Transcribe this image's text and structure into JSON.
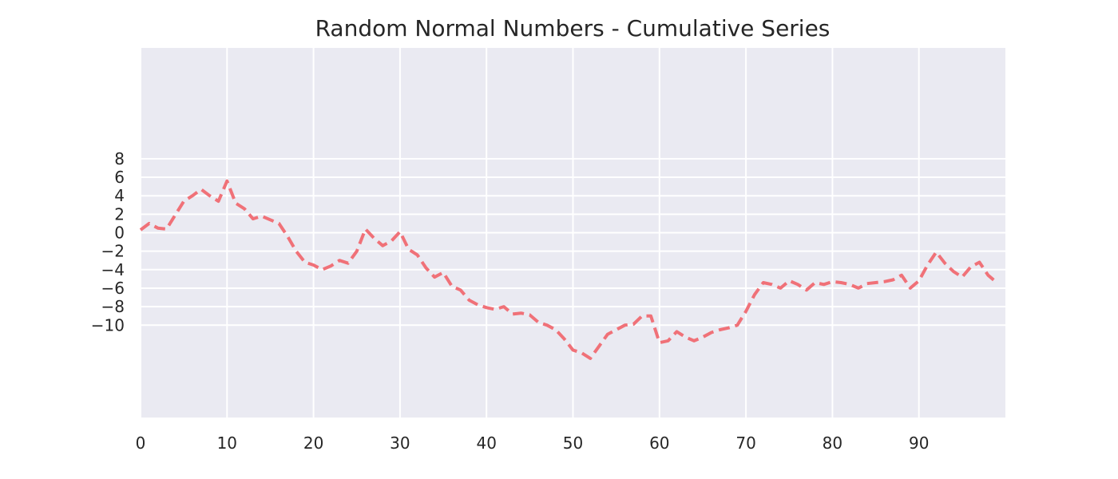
{
  "chart_data": {
    "type": "line",
    "title": "Random Normal Numbers - Cumulative Series",
    "xlabel": "",
    "ylabel": "",
    "xlim": [
      0,
      100
    ],
    "ylim": [
      -20,
      20
    ],
    "x_ticks": [
      0,
      10,
      20,
      30,
      40,
      50,
      60,
      70,
      80,
      90
    ],
    "y_ticks": [
      -10,
      -8,
      -6,
      -4,
      -2,
      0,
      2,
      4,
      6,
      8
    ],
    "y_tick_labels": [
      "−10",
      "−8",
      "−6",
      "−4",
      "−2",
      "0",
      "2",
      "4",
      "6",
      "8"
    ],
    "grid": true,
    "legend": "none",
    "series": [
      {
        "line_style": "dashed",
        "color": "#F07178",
        "x": [
          0,
          1,
          2,
          3,
          4,
          5,
          6,
          7,
          8,
          9,
          10,
          11,
          12,
          13,
          14,
          15,
          16,
          17,
          18,
          19,
          20,
          21,
          22,
          23,
          24,
          25,
          26,
          27,
          28,
          29,
          30,
          31,
          32,
          33,
          34,
          35,
          36,
          37,
          38,
          39,
          40,
          41,
          42,
          43,
          44,
          45,
          46,
          47,
          48,
          49,
          50,
          51,
          52,
          53,
          54,
          55,
          56,
          57,
          58,
          59,
          60,
          61,
          62,
          63,
          64,
          65,
          66,
          67,
          68,
          69,
          70,
          71,
          72,
          73,
          74,
          75,
          76,
          77,
          78,
          79,
          80,
          81,
          82,
          83,
          84,
          85,
          86,
          87,
          88,
          89,
          90,
          91,
          92,
          93,
          94,
          95,
          96,
          97,
          98,
          99
        ],
        "values": [
          0.3,
          1.0,
          0.5,
          0.4,
          1.9,
          3.4,
          4.0,
          4.7,
          4.0,
          3.4,
          5.6,
          3.2,
          2.6,
          1.5,
          1.8,
          1.4,
          1.0,
          -0.4,
          -2.0,
          -3.2,
          -3.5,
          -4.0,
          -3.6,
          -3.0,
          -3.3,
          -2.0,
          0.4,
          -0.6,
          -1.4,
          -0.9,
          0.1,
          -1.8,
          -2.4,
          -3.8,
          -4.8,
          -4.3,
          -5.8,
          -6.2,
          -7.3,
          -7.8,
          -8.1,
          -8.3,
          -8.0,
          -8.8,
          -8.7,
          -8.9,
          -9.7,
          -10.0,
          -10.5,
          -11.5,
          -12.7,
          -13.0,
          -13.6,
          -12.3,
          -11.0,
          -10.5,
          -10.0,
          -9.9,
          -9.0,
          -9.0,
          -11.9,
          -11.7,
          -10.7,
          -11.3,
          -11.7,
          -11.3,
          -10.8,
          -10.5,
          -10.3,
          -10.0,
          -8.5,
          -6.7,
          -5.4,
          -5.6,
          -6.0,
          -5.2,
          -5.6,
          -6.2,
          -5.4,
          -5.6,
          -5.3,
          -5.4,
          -5.6,
          -6.0,
          -5.5,
          -5.4,
          -5.3,
          -5.1,
          -4.6,
          -6.0,
          -5.2,
          -3.5,
          -2.1,
          -3.3,
          -4.2,
          -4.8,
          -3.7,
          -3.2,
          -4.6,
          -5.4
        ]
      }
    ]
  }
}
